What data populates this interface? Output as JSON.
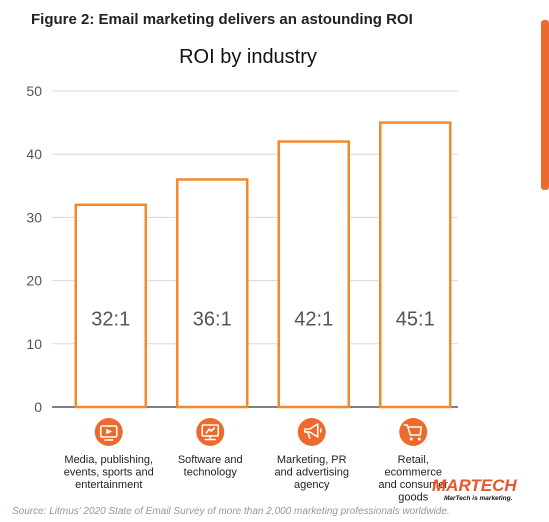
{
  "figure_title": "Figure 2: Email marketing delivers an astounding ROI",
  "source": "Source: Litmus' 2020 State of Email Survey of more than 2,000 marketing professionals worldwide.",
  "logo": {
    "text": "MARTECH",
    "tagline": "MarTech is marketing.",
    "color": "#e8562a"
  },
  "colors": {
    "bar_stroke": "#f08a2e",
    "icon_fill": "#ee6a2c",
    "axis": "#555555",
    "grid": "#d8d8d8",
    "side_tab": "#ee6a2c"
  },
  "chart_data": {
    "type": "bar",
    "title": "ROI by industry",
    "xlabel": "",
    "ylabel": "",
    "ylim": [
      0,
      50
    ],
    "yticks": [
      0,
      10,
      20,
      30,
      40,
      50
    ],
    "grid": true,
    "categories": [
      "Media, publishing, events, sports and entertainment",
      "Software and technology",
      "Marketing, PR and advertising agency",
      "Retail, ecommerce and consumer goods"
    ],
    "category_lines": [
      [
        "Media, publishing,",
        "events, sports and",
        "entertainment"
      ],
      [
        "Software and",
        "technology"
      ],
      [
        "Marketing, PR",
        "and advertising",
        "agency"
      ],
      [
        "Retail,",
        "ecommerce",
        "and consumer",
        "goods"
      ]
    ],
    "category_icons": [
      "video-play-icon",
      "monitor-icon",
      "megaphone-icon",
      "shopping-cart-icon"
    ],
    "values": [
      32,
      36,
      42,
      45
    ],
    "data_labels": [
      "32:1",
      "36:1",
      "42:1",
      "45:1"
    ]
  }
}
